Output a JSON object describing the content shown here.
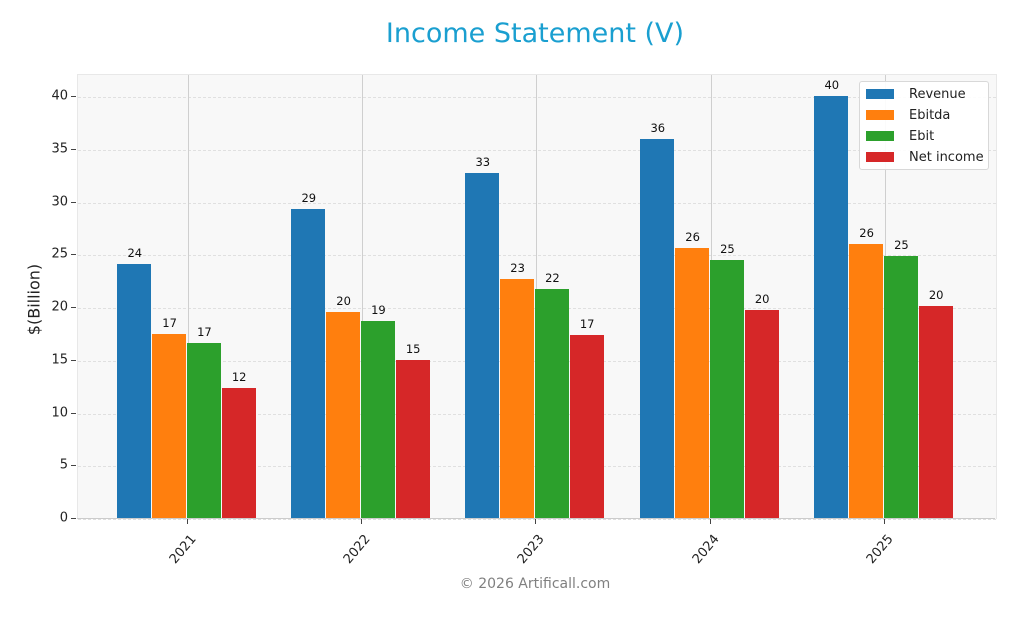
{
  "chart_data": {
    "type": "bar",
    "title": "Income Statement (V)",
    "xlabel": "",
    "ylabel": "$(Billion)",
    "ylim": [
      0,
      42
    ],
    "yticks": [
      0,
      5,
      10,
      15,
      20,
      25,
      30,
      35,
      40
    ],
    "grid": true,
    "legend_position": "upper right",
    "categories": [
      "2021",
      "2022",
      "2023",
      "2024",
      "2025"
    ],
    "series": [
      {
        "name": "Revenue",
        "color": "#1f77b4",
        "values": [
          24.1,
          29.3,
          32.7,
          35.9,
          40.0
        ],
        "labels": [
          "24",
          "29",
          "33",
          "36",
          "40"
        ]
      },
      {
        "name": "Ebitda",
        "color": "#ff7f0e",
        "values": [
          17.4,
          19.5,
          22.7,
          25.6,
          26.0
        ],
        "labels": [
          "17",
          "20",
          "23",
          "26",
          "26"
        ]
      },
      {
        "name": "Ebit",
        "color": "#2ca02c",
        "values": [
          16.6,
          18.7,
          21.7,
          24.5,
          24.8
        ],
        "labels": [
          "17",
          "19",
          "22",
          "25",
          "25"
        ]
      },
      {
        "name": "Net income",
        "color": "#d62728",
        "values": [
          12.3,
          15.0,
          17.3,
          19.7,
          20.1
        ],
        "labels": [
          "12",
          "15",
          "17",
          "20",
          "20"
        ]
      }
    ]
  },
  "header": {
    "title": "Income Statement (V)"
  },
  "axis": {
    "ylabel": "$(Billion)"
  },
  "footer": {
    "text": "© 2026 Artificall.com"
  }
}
